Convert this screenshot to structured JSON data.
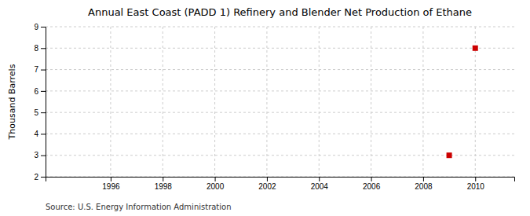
{
  "chart_data": {
    "type": "scatter",
    "title": "Annual East Coast (PADD 1) Refinery and Blender Net Production of Ethane",
    "ylabel": "Thousand Barrels",
    "source": "Source: U.S. Energy Information Administration",
    "x": [
      2009,
      2010
    ],
    "values": [
      3,
      8
    ],
    "color": "#cc0000",
    "marker": "square",
    "xlim": [
      1993.5,
      2011.5
    ],
    "ylim": [
      2,
      9
    ],
    "xticks": [
      1996,
      1998,
      2000,
      2002,
      2004,
      2006,
      2008,
      2010
    ],
    "yticks": [
      2,
      3,
      4,
      5,
      6,
      7,
      8,
      9
    ],
    "grid": true
  }
}
